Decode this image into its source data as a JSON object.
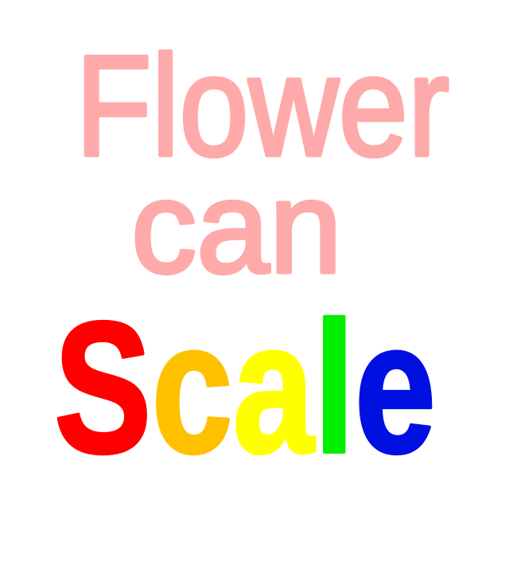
{
  "title_lines": [
    {
      "text": "Flower",
      "color": "#ffaaaa"
    },
    {
      "text": "can",
      "color": "#ffaaaa"
    }
  ],
  "scale_letters": [
    {
      "text": "S",
      "color": "#ff0000"
    },
    {
      "text": "c",
      "color": "#ffc000"
    },
    {
      "text": "a",
      "color": "#ffff00"
    },
    {
      "text": "l",
      "color": "#00ee00"
    },
    {
      "text": "e",
      "color": "#0010e0"
    }
  ]
}
